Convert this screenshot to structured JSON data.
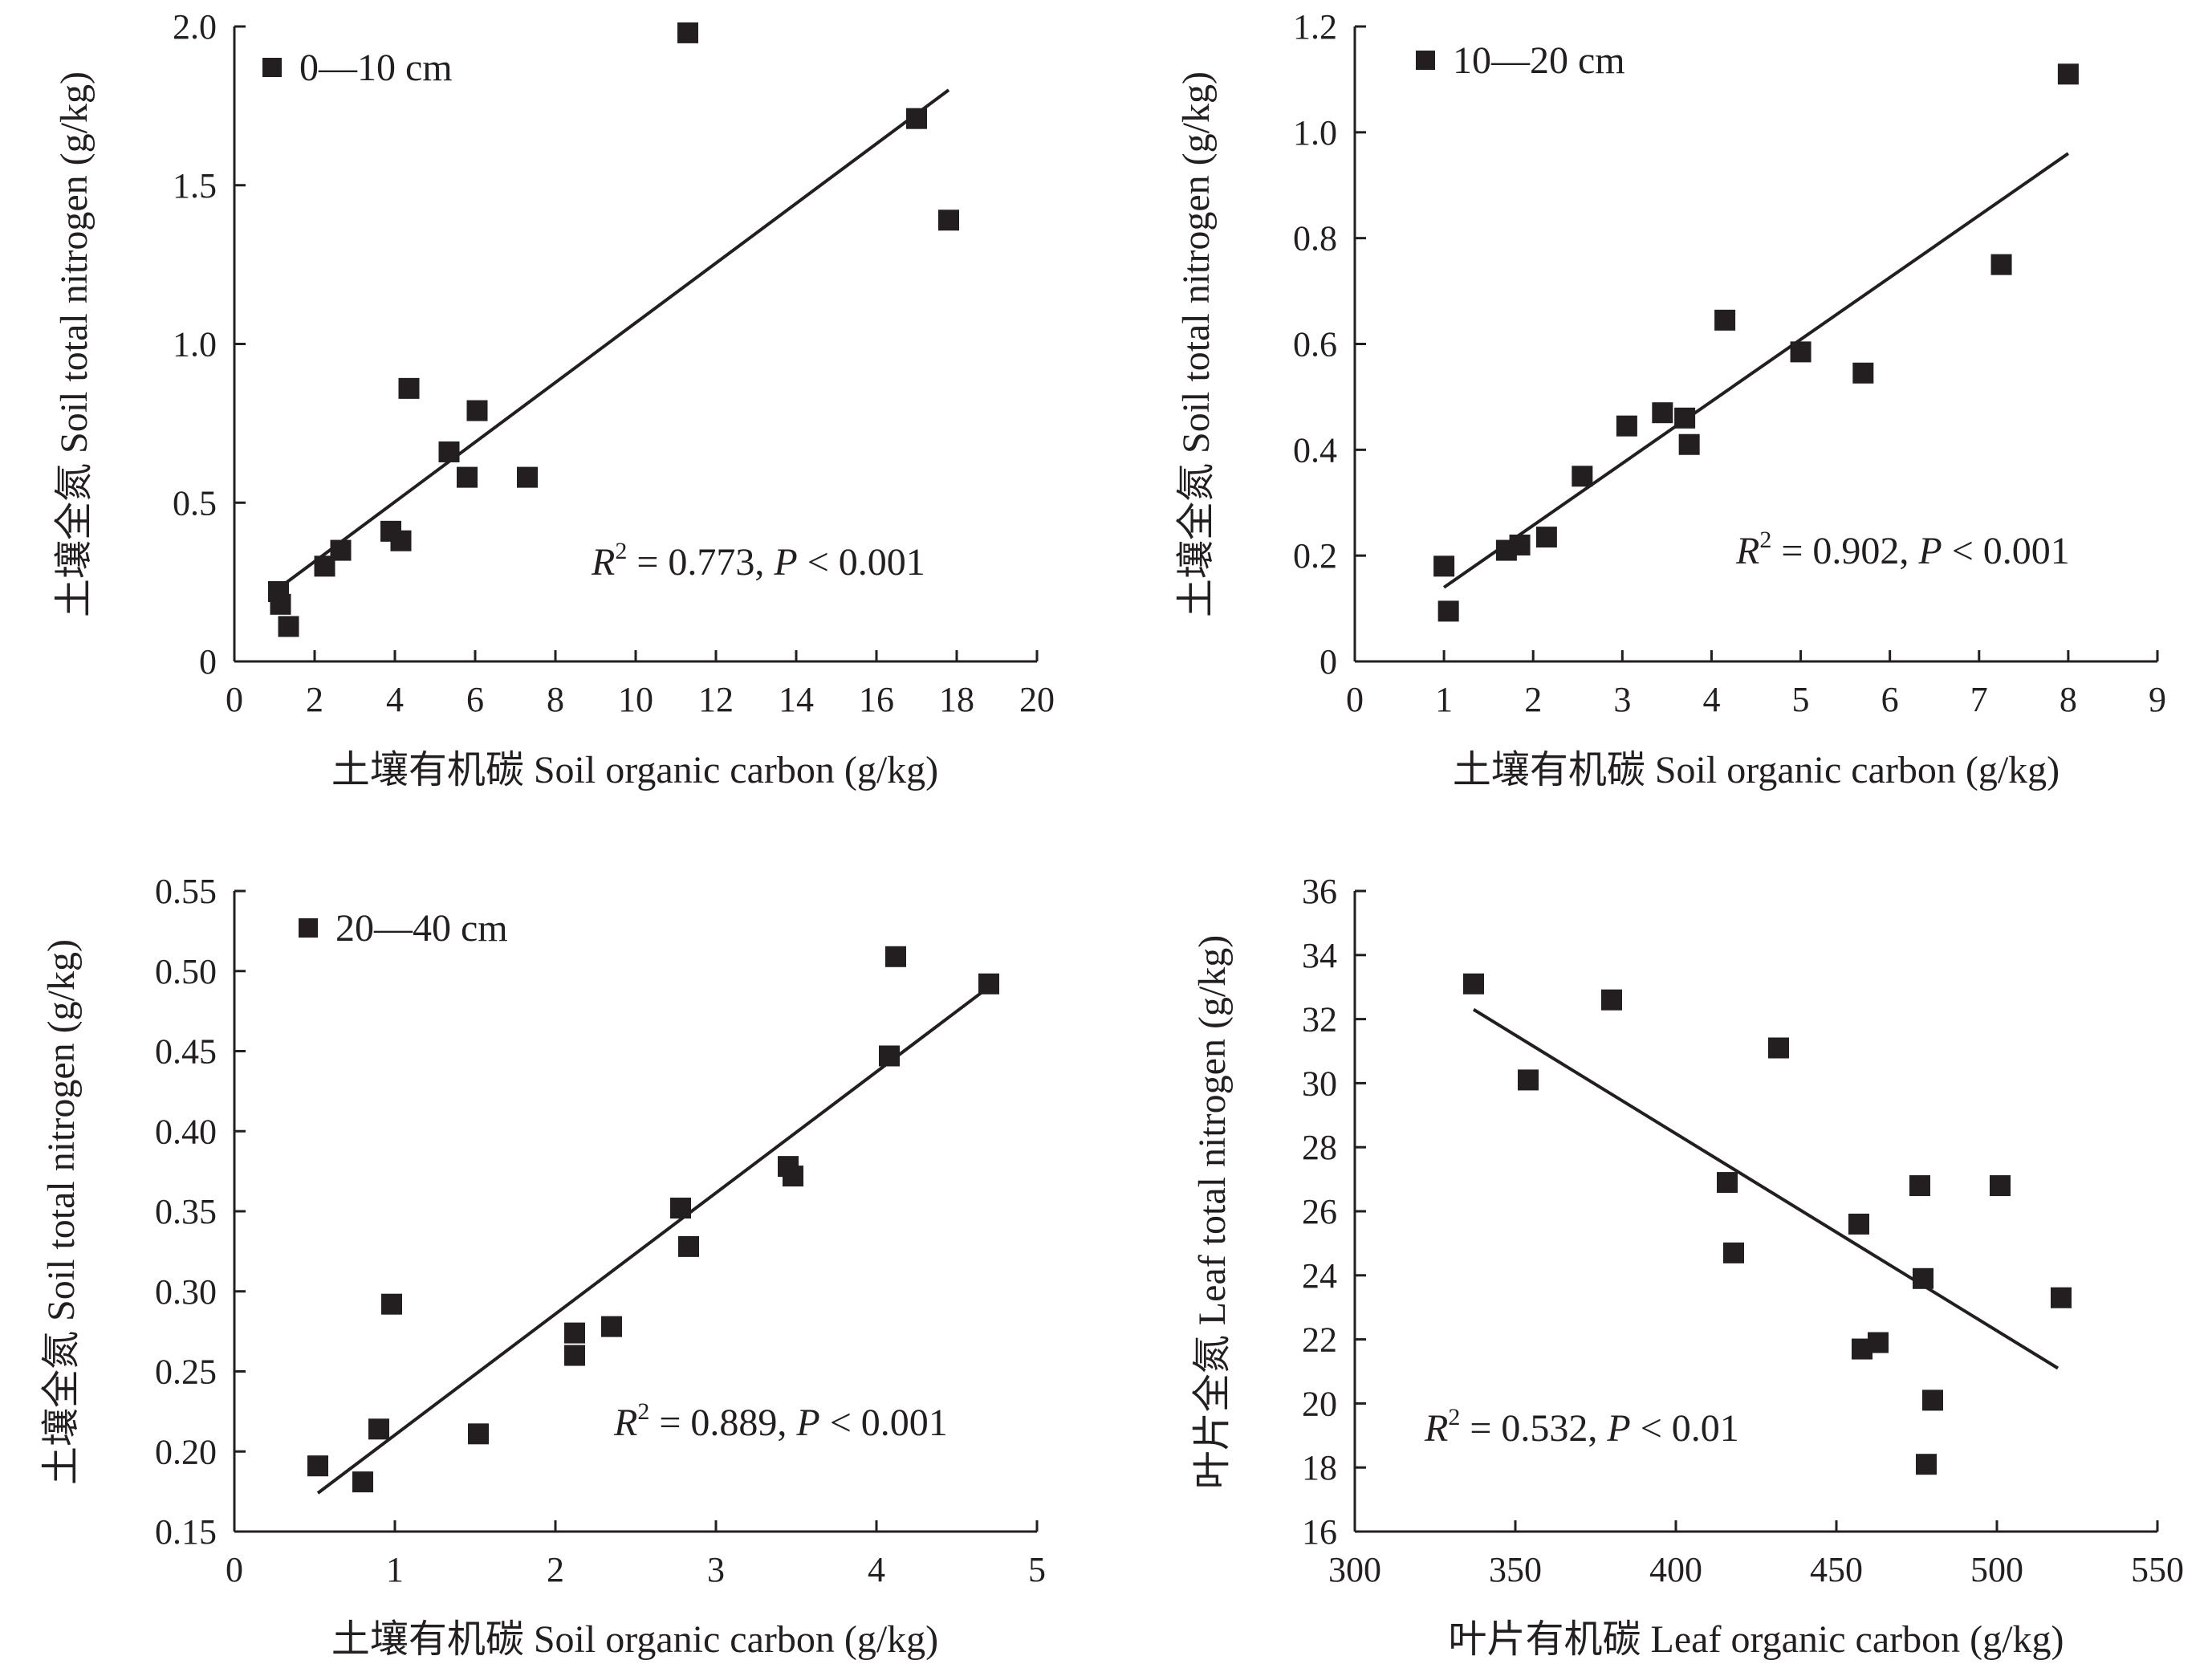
{
  "colors": {
    "ink": "#231f20",
    "background": "#ffffff"
  },
  "chart_data": [
    {
      "type": "scatter",
      "legend": "0—10 cm",
      "legend_position": "top-left",
      "xlabel": "土壤有机碳 Soil organic carbon (g/kg)",
      "ylabel": "土壤全氮 Soil total nitrogen (g/kg)",
      "xlim": [
        0,
        20
      ],
      "ylim": [
        0,
        2.0
      ],
      "xticks": [
        0,
        2,
        4,
        6,
        8,
        10,
        12,
        14,
        16,
        18,
        20
      ],
      "yticks": [
        0,
        0.5,
        1.0,
        1.5,
        2.0
      ],
      "xtick_labels": [
        "0",
        "2",
        "4",
        "6",
        "8",
        "10",
        "12",
        "14",
        "16",
        "18",
        "20"
      ],
      "ytick_labels": [
        "0",
        "0.5",
        "1.0",
        "1.5",
        "2.0"
      ],
      "points": [
        [
          1.1,
          0.22
        ],
        [
          1.15,
          0.18
        ],
        [
          1.35,
          0.11
        ],
        [
          2.25,
          0.3
        ],
        [
          2.65,
          0.35
        ],
        [
          3.9,
          0.41
        ],
        [
          4.15,
          0.38
        ],
        [
          4.35,
          0.86
        ],
        [
          5.35,
          0.66
        ],
        [
          5.8,
          0.58
        ],
        [
          6.05,
          0.79
        ],
        [
          7.3,
          0.58
        ],
        [
          11.3,
          1.98
        ],
        [
          17.0,
          1.71
        ],
        [
          17.8,
          1.39
        ]
      ],
      "fit_line": [
        [
          1.1,
          0.23
        ],
        [
          17.8,
          1.8
        ]
      ],
      "stats": {
        "r2_label": "R",
        "r2_sup": "2",
        "r2_value": " = 0.773, ",
        "p_label": "P",
        "p_value": " < 0.001"
      },
      "grid": false
    },
    {
      "type": "scatter",
      "legend": "10—20 cm",
      "legend_position": "top-left",
      "xlabel": "土壤有机碳 Soil organic carbon (g/kg)",
      "ylabel": "土壤全氮 Soil total nitrogen (g/kg)",
      "xlim": [
        0,
        9
      ],
      "ylim": [
        0,
        1.2
      ],
      "xticks": [
        0,
        1,
        2,
        3,
        4,
        5,
        6,
        7,
        8,
        9
      ],
      "yticks": [
        0,
        0.2,
        0.4,
        0.6,
        0.8,
        1.0,
        1.2
      ],
      "xtick_labels": [
        "0",
        "1",
        "2",
        "3",
        "4",
        "5",
        "6",
        "7",
        "8",
        "9"
      ],
      "ytick_labels": [
        "0",
        "0.2",
        "0.4",
        "0.6",
        "0.8",
        "1.0",
        "1.2"
      ],
      "points": [
        [
          1.0,
          0.18
        ],
        [
          1.05,
          0.095
        ],
        [
          1.7,
          0.21
        ],
        [
          1.85,
          0.22
        ],
        [
          2.15,
          0.235
        ],
        [
          2.55,
          0.35
        ],
        [
          3.05,
          0.445
        ],
        [
          3.45,
          0.47
        ],
        [
          3.7,
          0.46
        ],
        [
          3.75,
          0.41
        ],
        [
          4.15,
          0.645
        ],
        [
          5.0,
          0.585
        ],
        [
          5.7,
          0.545
        ],
        [
          7.25,
          0.75
        ],
        [
          8.0,
          1.11
        ]
      ],
      "fit_line": [
        [
          1.0,
          0.14
        ],
        [
          8.0,
          0.96
        ]
      ],
      "stats": {
        "r2_label": "R",
        "r2_sup": "2",
        "r2_value": " = 0.902, ",
        "p_label": "P",
        "p_value": " < 0.001"
      },
      "grid": false
    },
    {
      "type": "scatter",
      "legend": "20—40 cm",
      "legend_position": "top-left",
      "xlabel": "土壤有机碳 Soil organic carbon (g/kg)",
      "ylabel": "土壤全氮 Soil total nitrogen (g/kg)",
      "xlim": [
        0,
        5
      ],
      "ylim": [
        0.15,
        0.55
      ],
      "xticks": [
        0,
        1,
        2,
        3,
        4,
        5
      ],
      "yticks": [
        0.15,
        0.2,
        0.25,
        0.3,
        0.35,
        0.4,
        0.45,
        0.5,
        0.55
      ],
      "xtick_labels": [
        "0",
        "1",
        "2",
        "3",
        "4",
        "5"
      ],
      "ytick_labels": [
        "0.15",
        "0.20",
        "0.25",
        "0.30",
        "0.35",
        "0.40",
        "0.45",
        "0.50",
        "0.55"
      ],
      "points": [
        [
          0.52,
          0.191
        ],
        [
          0.8,
          0.181
        ],
        [
          0.9,
          0.214
        ],
        [
          0.98,
          0.292
        ],
        [
          1.52,
          0.211
        ],
        [
          2.12,
          0.274
        ],
        [
          2.12,
          0.26
        ],
        [
          2.35,
          0.278
        ],
        [
          2.78,
          0.352
        ],
        [
          2.83,
          0.328
        ],
        [
          3.45,
          0.378
        ],
        [
          3.48,
          0.372
        ],
        [
          4.08,
          0.447
        ],
        [
          4.12,
          0.509
        ],
        [
          4.7,
          0.492
        ]
      ],
      "fit_line": [
        [
          0.52,
          0.174
        ],
        [
          4.7,
          0.49
        ]
      ],
      "stats": {
        "r2_label": "R",
        "r2_sup": "2",
        "r2_value": " = 0.889, ",
        "p_label": "P",
        "p_value": " < 0.001"
      },
      "grid": false
    },
    {
      "type": "scatter",
      "legend": "",
      "xlabel": "叶片有机碳 Leaf organic carbon (g/kg)",
      "ylabel": "叶片全氮 Leaf total nitrogen (g/kg)",
      "xlim": [
        300,
        550
      ],
      "ylim": [
        16,
        36
      ],
      "xticks": [
        300,
        350,
        400,
        450,
        500,
        550
      ],
      "yticks": [
        16,
        18,
        20,
        22,
        24,
        26,
        28,
        30,
        32,
        34,
        36
      ],
      "xtick_labels": [
        "300",
        "350",
        "400",
        "450",
        "500",
        "550"
      ],
      "ytick_labels": [
        "16",
        "18",
        "20",
        "22",
        "24",
        "26",
        "28",
        "30",
        "32",
        "34",
        "36"
      ],
      "points": [
        [
          337,
          33.1
        ],
        [
          354,
          30.1
        ],
        [
          380,
          32.6
        ],
        [
          416,
          26.9
        ],
        [
          418,
          24.7
        ],
        [
          432,
          31.1
        ],
        [
          457,
          25.6
        ],
        [
          458,
          21.7
        ],
        [
          463,
          21.9
        ],
        [
          476,
          26.8
        ],
        [
          477,
          23.9
        ],
        [
          478,
          18.1
        ],
        [
          480,
          20.1
        ],
        [
          501,
          26.8
        ],
        [
          520,
          23.3
        ]
      ],
      "fit_line": [
        [
          337,
          32.3
        ],
        [
          519,
          21.1
        ]
      ],
      "stats": {
        "r2_label": "R",
        "r2_sup": "2",
        "r2_value": " = 0.532, ",
        "p_label": "P",
        "p_value": " < 0.01"
      },
      "grid": false
    }
  ]
}
